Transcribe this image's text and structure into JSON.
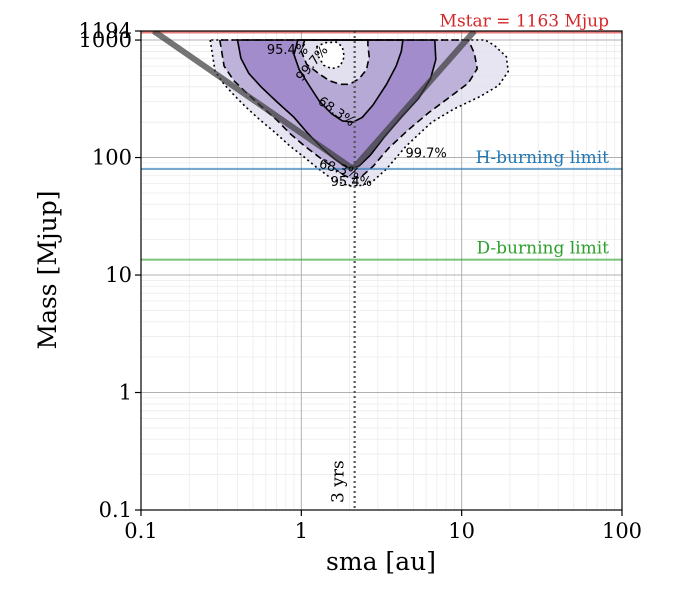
{
  "chart_data": {
    "type": "contour",
    "xlabel": "sma [au]",
    "ylabel": "Mass [Mjup]",
    "xscale": "log",
    "yscale": "log",
    "xlim": [
      0.1,
      100
    ],
    "ylim": [
      0.1,
      1194
    ],
    "grid": true,
    "x_ticks": [
      {
        "value": 0.1,
        "label": "0.1"
      },
      {
        "value": 1,
        "label": "1"
      },
      {
        "value": 10,
        "label": "10"
      },
      {
        "value": 100,
        "label": "100"
      }
    ],
    "y_ticks": [
      {
        "value": 0.1,
        "label": "0.1"
      },
      {
        "value": 1,
        "label": "1"
      },
      {
        "value": 10,
        "label": "10"
      },
      {
        "value": 100,
        "label": "100"
      },
      {
        "value": 1000,
        "label": "1000"
      },
      {
        "value": 1194,
        "label": "1194"
      }
    ],
    "hlines": [
      {
        "id": "mstar",
        "value": 1163,
        "label": "Mstar = 1163 Mjup",
        "color": "#d62728"
      },
      {
        "id": "hburn",
        "value": 80,
        "label": "H-burning limit",
        "color": "#1f77b4"
      },
      {
        "id": "dburn",
        "value": 13.5,
        "label": "D-burning limit",
        "color": "#2ca02c"
      }
    ],
    "vlines": [
      {
        "id": "period",
        "value": 2.15,
        "label": "3 yrs",
        "color": "#555555"
      }
    ],
    "contours": [
      {
        "level": "99.7%",
        "style": "dotted",
        "fill": "#e2e0ef",
        "points": [
          [
            0.27,
            1000
          ],
          [
            0.29,
            540
          ],
          [
            0.33,
            420
          ],
          [
            0.38,
            340
          ],
          [
            0.45,
            270
          ],
          [
            0.55,
            210
          ],
          [
            0.68,
            165
          ],
          [
            0.85,
            125
          ],
          [
            1.05,
            100
          ],
          [
            1.25,
            82
          ],
          [
            1.5,
            68
          ],
          [
            1.8,
            60
          ],
          [
            2.05,
            57
          ],
          [
            2.4,
            58
          ],
          [
            2.8,
            63
          ],
          [
            3.4,
            80
          ],
          [
            4.5,
            125
          ],
          [
            6.5,
            200
          ],
          [
            9,
            260
          ],
          [
            13,
            330
          ],
          [
            17,
            410
          ],
          [
            19.5,
            540
          ],
          [
            19,
            720
          ],
          [
            16,
            900
          ],
          [
            14,
            1000
          ]
        ]
      },
      {
        "level": "95.4%",
        "style": "dashed",
        "fill": "#b6a9d6",
        "points": [
          [
            0.31,
            1000
          ],
          [
            0.33,
            600
          ],
          [
            0.38,
            450
          ],
          [
            0.45,
            360
          ],
          [
            0.55,
            280
          ],
          [
            0.7,
            210
          ],
          [
            0.85,
            160
          ],
          [
            1.05,
            125
          ],
          [
            1.3,
            100
          ],
          [
            1.55,
            84
          ],
          [
            1.8,
            72
          ],
          [
            2.05,
            66
          ],
          [
            2.35,
            68
          ],
          [
            2.8,
            84
          ],
          [
            3.5,
            120
          ],
          [
            4.6,
            170
          ],
          [
            6.2,
            240
          ],
          [
            8.5,
            330
          ],
          [
            11,
            430
          ],
          [
            12.5,
            570
          ],
          [
            12,
            770
          ],
          [
            11,
            1000
          ]
        ]
      },
      {
        "level": "68.3%",
        "style": "solid",
        "fill": "#9e85c8",
        "points": [
          [
            0.4,
            1000
          ],
          [
            0.42,
            700
          ],
          [
            0.47,
            520
          ],
          [
            0.56,
            400
          ],
          [
            0.7,
            300
          ],
          [
            0.9,
            220
          ],
          [
            1.1,
            160
          ],
          [
            1.35,
            120
          ],
          [
            1.6,
            98
          ],
          [
            1.85,
            85
          ],
          [
            2.05,
            80
          ],
          [
            2.3,
            85
          ],
          [
            2.7,
            105
          ],
          [
            3.3,
            150
          ],
          [
            4.2,
            220
          ],
          [
            5.4,
            320
          ],
          [
            6.4,
            470
          ],
          [
            6.9,
            680
          ],
          [
            6.8,
            1000
          ]
        ]
      }
    ],
    "holes": [
      {
        "level": "68.3%",
        "style": "solid",
        "points": [
          [
            0.95,
            1000
          ],
          [
            0.9,
            750
          ],
          [
            0.97,
            560
          ],
          [
            1.12,
            410
          ],
          [
            1.3,
            300
          ],
          [
            1.55,
            235
          ],
          [
            1.8,
            205
          ],
          [
            2.1,
            200
          ],
          [
            2.4,
            220
          ],
          [
            2.8,
            280
          ],
          [
            3.4,
            420
          ],
          [
            3.9,
            600
          ],
          [
            4.2,
            800
          ],
          [
            4.3,
            1000
          ]
        ]
      },
      {
        "level": "95.4%",
        "style": "dashed",
        "points": [
          [
            1.05,
            1000
          ],
          [
            1.0,
            800
          ],
          [
            1.08,
            620
          ],
          [
            1.28,
            520
          ],
          [
            1.5,
            450
          ],
          [
            1.75,
            420
          ],
          [
            2.0,
            420
          ],
          [
            2.3,
            470
          ],
          [
            2.55,
            560
          ],
          [
            2.65,
            720
          ],
          [
            2.6,
            900
          ],
          [
            2.6,
            1000
          ]
        ]
      },
      {
        "level": "99.7%",
        "style": "dotted",
        "points": [
          [
            1.25,
            880
          ],
          [
            1.28,
            720
          ],
          [
            1.38,
            610
          ],
          [
            1.55,
            570
          ],
          [
            1.75,
            600
          ],
          [
            1.85,
            720
          ],
          [
            1.8,
            880
          ],
          [
            1.65,
            960
          ],
          [
            1.4,
            950
          ]
        ]
      }
    ],
    "contour_labels": [
      {
        "text": "95.4%",
        "x": 0.82,
        "y": 760,
        "rotate": 0
      },
      {
        "text": "99.7%",
        "x": 1.22,
        "y": 600,
        "rotate": -50
      },
      {
        "text": "68.3%",
        "x": 1.6,
        "y": 230,
        "rotate": 35
      },
      {
        "text": "68.3%",
        "x": 1.7,
        "y": 74,
        "rotate": 15
      },
      {
        "text": "99.7%",
        "x": 6.0,
        "y": 100,
        "rotate": 0
      },
      {
        "text": "95.4%",
        "x": 2.05,
        "y": 57,
        "rotate": 0
      }
    ],
    "envelope_lines": [
      {
        "points": [
          [
            0.12,
            1194
          ],
          [
            2.1,
            80
          ]
        ]
      },
      {
        "points": [
          [
            2.1,
            80
          ],
          [
            12,
            1194
          ]
        ]
      }
    ]
  }
}
